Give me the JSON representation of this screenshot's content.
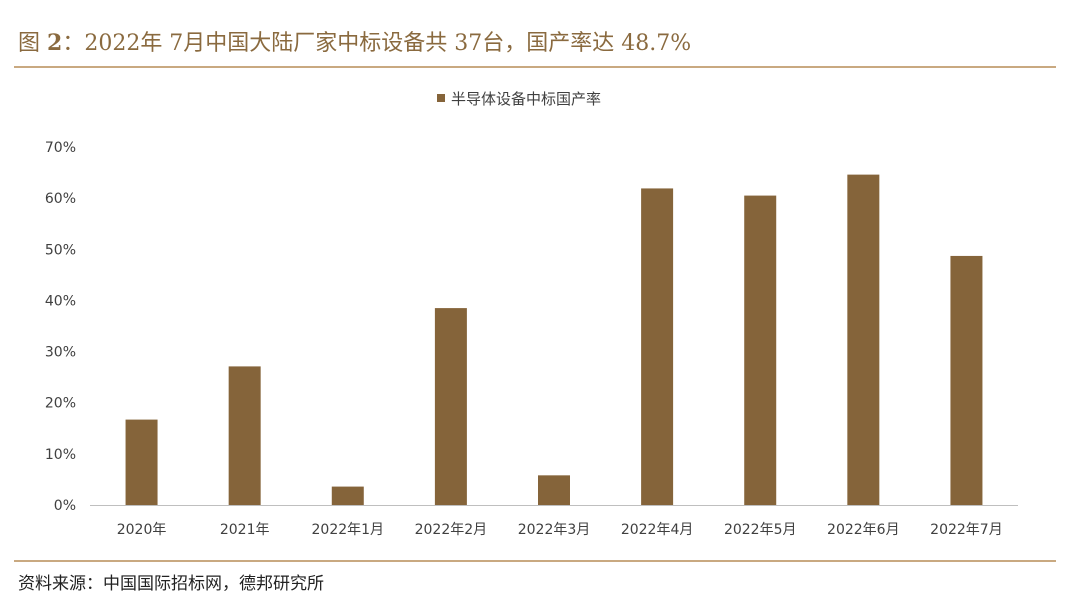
{
  "figure": {
    "label": "图",
    "number": "2",
    "title": "：2022年 7月中国大陆厂家中标设备共 37台，国产率达 48.7%"
  },
  "source": "资料来源：中国国际招标网，德邦研究所",
  "colors": {
    "bar": "#85643a",
    "rule": "#c9a981",
    "title": "#8a6a3f",
    "axis": "#bfbfbf"
  },
  "chart_data": {
    "type": "bar",
    "categories": [
      "2020年",
      "2021年",
      "2022年1月",
      "2022年2月",
      "2022年3月",
      "2022年4月",
      "2022年5月",
      "2022年6月",
      "2022年7月"
    ],
    "series": [
      {
        "name": "半导体设备中标国产率",
        "values": [
          16.7,
          27.1,
          3.6,
          38.5,
          5.8,
          61.9,
          60.5,
          64.6,
          48.7
        ]
      }
    ],
    "y_ticks": [
      "0%",
      "10%",
      "20%",
      "30%",
      "40%",
      "50%",
      "60%",
      "70%"
    ],
    "ylim": [
      0,
      70
    ],
    "grid": false,
    "legend_position": "top-center"
  }
}
